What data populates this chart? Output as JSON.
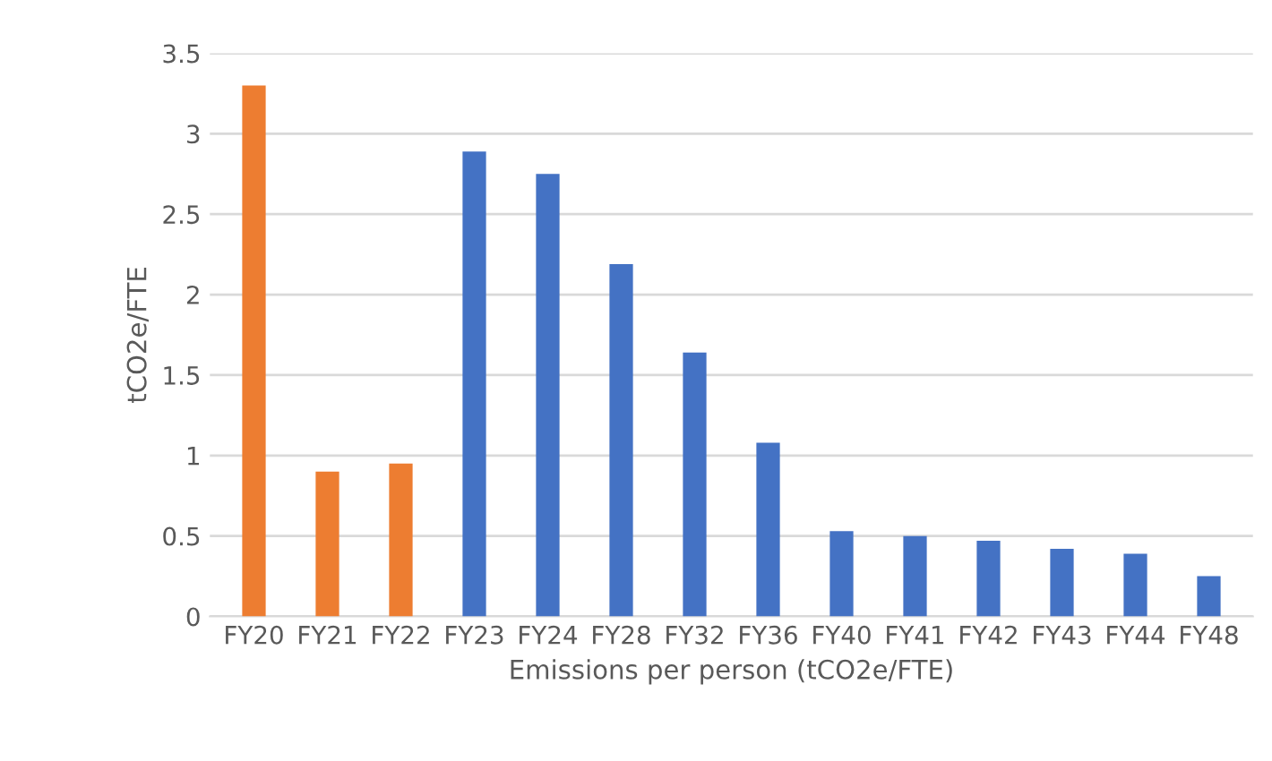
{
  "chart_data": {
    "type": "bar",
    "xlabel": "Emissions per person (tCO2e/FTE)",
    "ylabel": "tCO2e/FTE",
    "categories": [
      "FY20",
      "FY21",
      "FY22",
      "FY23",
      "FY24",
      "FY28",
      "FY32",
      "FY36",
      "FY40",
      "FY41",
      "FY42",
      "FY43",
      "FY44",
      "FY48"
    ],
    "values": [
      3.3,
      0.9,
      0.95,
      2.89,
      2.75,
      2.19,
      1.64,
      1.08,
      0.53,
      0.5,
      0.47,
      0.42,
      0.39,
      0.25
    ],
    "colors": [
      "#ed7d31",
      "#ed7d31",
      "#ed7d31",
      "#4472c4",
      "#4472c4",
      "#4472c4",
      "#4472c4",
      "#4472c4",
      "#4472c4",
      "#4472c4",
      "#4472c4",
      "#4472c4",
      "#4472c4",
      "#4472c4"
    ],
    "ylim": [
      0,
      3.5
    ],
    "yticks": [
      0,
      0.5,
      1,
      1.5,
      2,
      2.5,
      3,
      3.5
    ],
    "grid": "y",
    "legend": false
  }
}
